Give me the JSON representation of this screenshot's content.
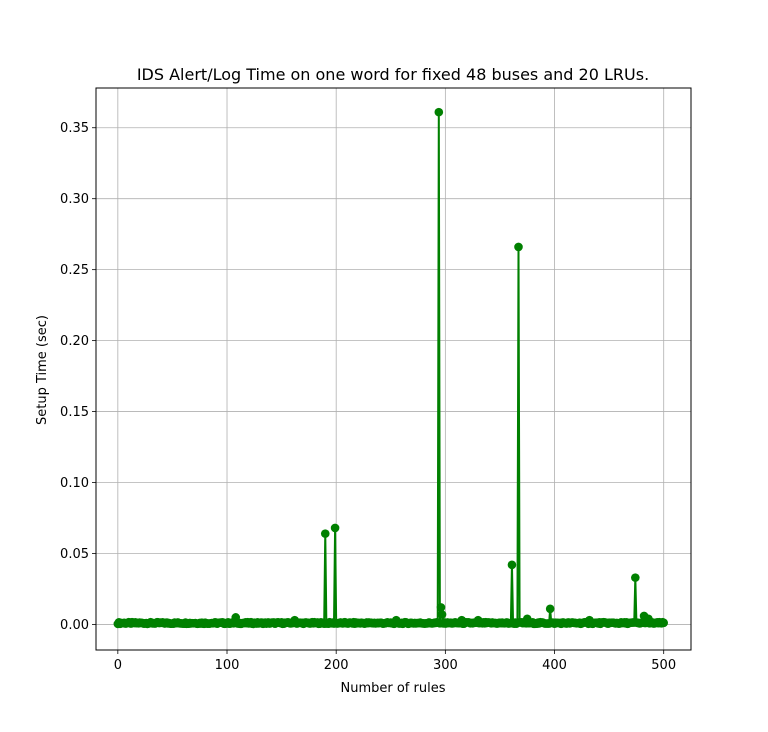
{
  "chart_data": {
    "type": "line",
    "title": "IDS Alert/Log Time on one word for fixed 48 buses and 20 LRUs.",
    "xlabel": "Number of rules",
    "ylabel": "Setup Time (sec)",
    "xlim": [
      -20,
      525
    ],
    "ylim": [
      -0.018,
      0.378
    ],
    "xticks": [
      0,
      100,
      200,
      300,
      400,
      500
    ],
    "xtick_labels": [
      "0",
      "100",
      "200",
      "300",
      "400",
      "500"
    ],
    "yticks": [
      0.0,
      0.05,
      0.1,
      0.15,
      0.2,
      0.25,
      0.3,
      0.35
    ],
    "ytick_labels": [
      "0.00",
      "0.05",
      "0.10",
      "0.15",
      "0.20",
      "0.25",
      "0.30",
      "0.35"
    ],
    "grid": true,
    "series": [
      {
        "color": "#008000",
        "marker": "circle",
        "baseline": 0.001,
        "x_range": [
          0,
          500
        ],
        "spikes": [
          {
            "x": 108,
            "y": 0.005
          },
          {
            "x": 162,
            "y": 0.003
          },
          {
            "x": 190,
            "y": 0.064
          },
          {
            "x": 199,
            "y": 0.068
          },
          {
            "x": 255,
            "y": 0.003
          },
          {
            "x": 294,
            "y": 0.361
          },
          {
            "x": 296,
            "y": 0.012
          },
          {
            "x": 297,
            "y": 0.007
          },
          {
            "x": 315,
            "y": 0.003
          },
          {
            "x": 330,
            "y": 0.003
          },
          {
            "x": 361,
            "y": 0.042
          },
          {
            "x": 367,
            "y": 0.266
          },
          {
            "x": 375,
            "y": 0.004
          },
          {
            "x": 396,
            "y": 0.011
          },
          {
            "x": 432,
            "y": 0.003
          },
          {
            "x": 474,
            "y": 0.033
          },
          {
            "x": 482,
            "y": 0.006
          },
          {
            "x": 486,
            "y": 0.004
          }
        ]
      }
    ]
  }
}
